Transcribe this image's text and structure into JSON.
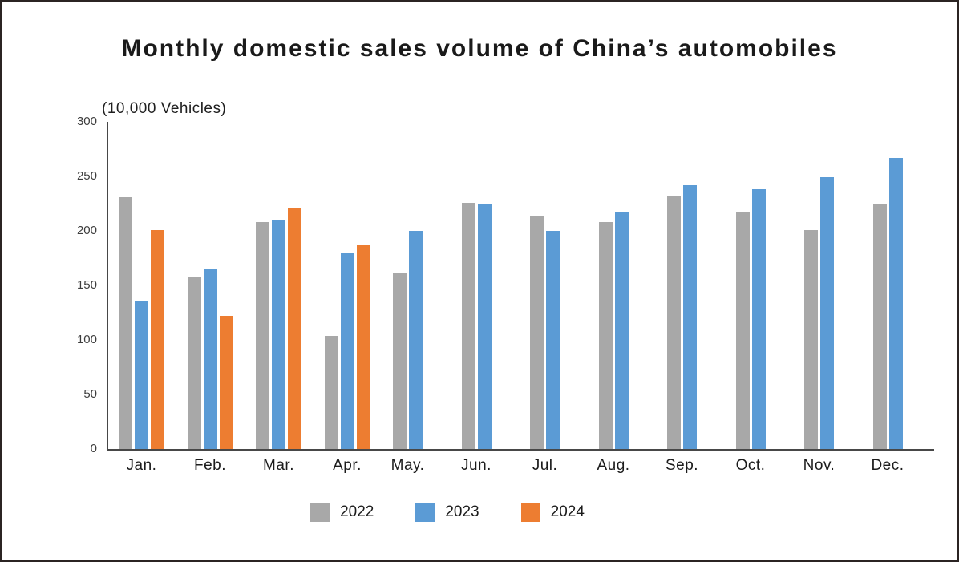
{
  "chart_data": {
    "type": "bar",
    "title": "Monthly domestic sales volume of China’s automobiles",
    "unit_label": "(10,000 Vehicles)",
    "xlabel": "",
    "ylabel": "10,000 Vehicles",
    "categories": [
      "Jan.",
      "Feb.",
      "Mar.",
      "Apr.",
      "May.",
      "Jun.",
      "Jul.",
      "Aug.",
      "Sep.",
      "Oct.",
      "Nov.",
      "Dec."
    ],
    "series": [
      {
        "name": "2022",
        "color": "#a8a8a8",
        "values": [
          231,
          157,
          208,
          104,
          162,
          226,
          214,
          208,
          232,
          218,
          201,
          225
        ]
      },
      {
        "name": "2023",
        "color": "#5b9bd5",
        "values": [
          136,
          165,
          210,
          180,
          200,
          225,
          200,
          218,
          242,
          238,
          249,
          267
        ]
      },
      {
        "name": "2024",
        "color": "#ed7d31",
        "values": [
          201,
          122,
          221,
          187,
          null,
          null,
          null,
          null,
          null,
          null,
          null,
          null
        ]
      }
    ],
    "ylim": [
      0,
      300
    ],
    "yticks": [
      0,
      50,
      100,
      150,
      200,
      250,
      300
    ],
    "grid": false,
    "legend_position": "bottom",
    "axis_color": "#474747",
    "frame_border_color": "#2b2423",
    "background_color": "#ffffff"
  }
}
